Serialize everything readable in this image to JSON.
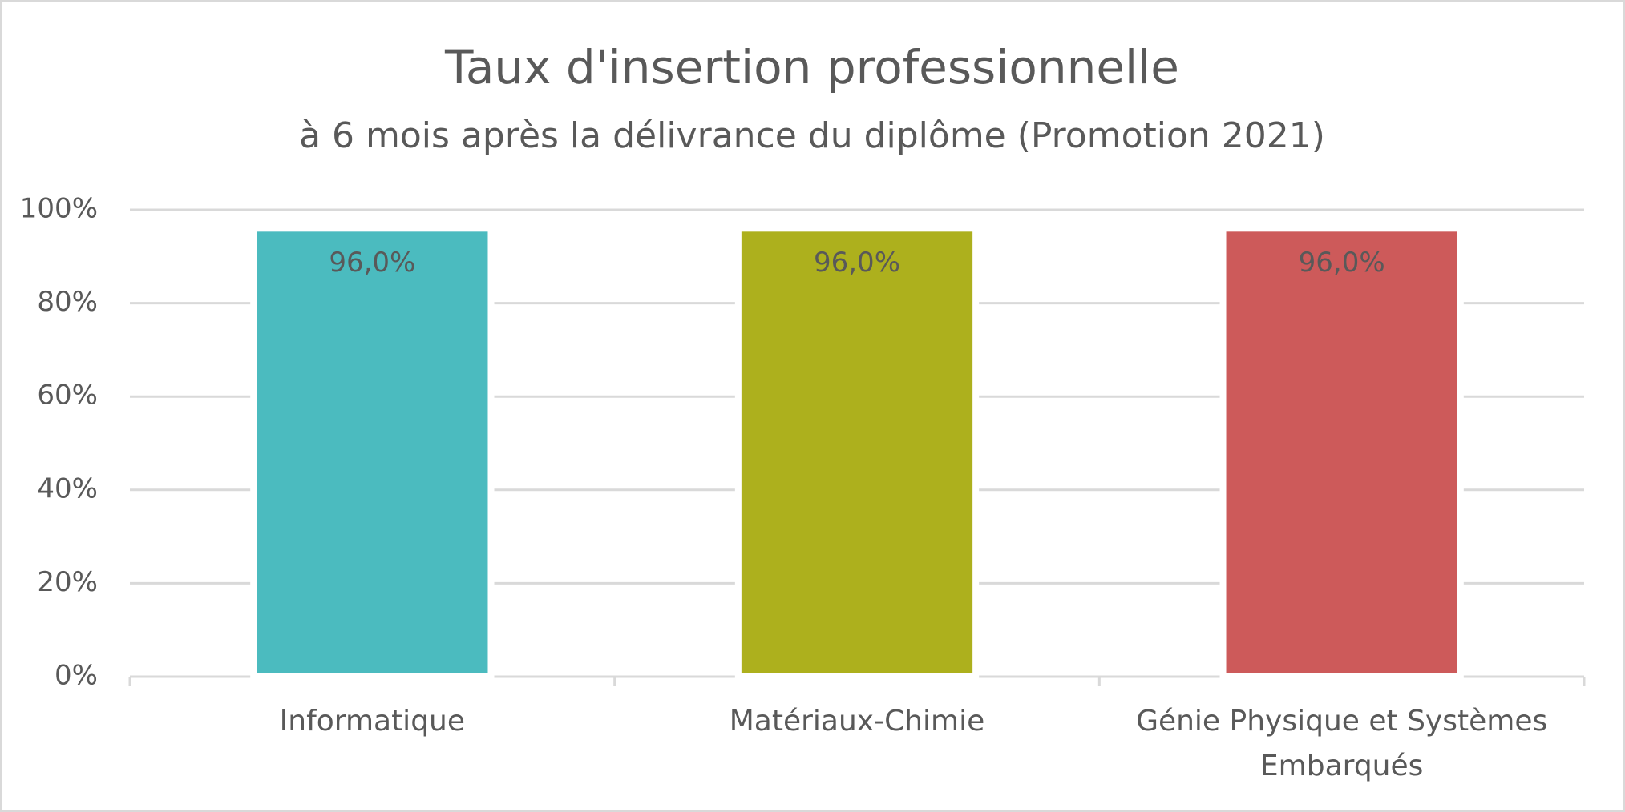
{
  "chart_data": {
    "type": "bar",
    "title": "Taux d'insertion professionnelle",
    "subtitle": "à 6 mois après la délivrance du diplôme (Promotion 2021)",
    "categories": [
      "Informatique",
      "Matériaux-Chimie",
      "Génie Physique et Systèmes Embarqués"
    ],
    "values": [
      96,
      96,
      96
    ],
    "value_labels": [
      "96,0%",
      "96,0%",
      "96,0%"
    ],
    "colors": [
      "#4bbbbf",
      "#adb01d",
      "#cd5a5a"
    ],
    "ylim": [
      0,
      100
    ],
    "yticks": [
      {
        "value": 0,
        "label": "0%"
      },
      {
        "value": 20,
        "label": "20%"
      },
      {
        "value": 40,
        "label": "40%"
      },
      {
        "value": 60,
        "label": "60%"
      },
      {
        "value": 80,
        "label": "80%"
      },
      {
        "value": 100,
        "label": "100%"
      }
    ],
    "grid": true
  }
}
